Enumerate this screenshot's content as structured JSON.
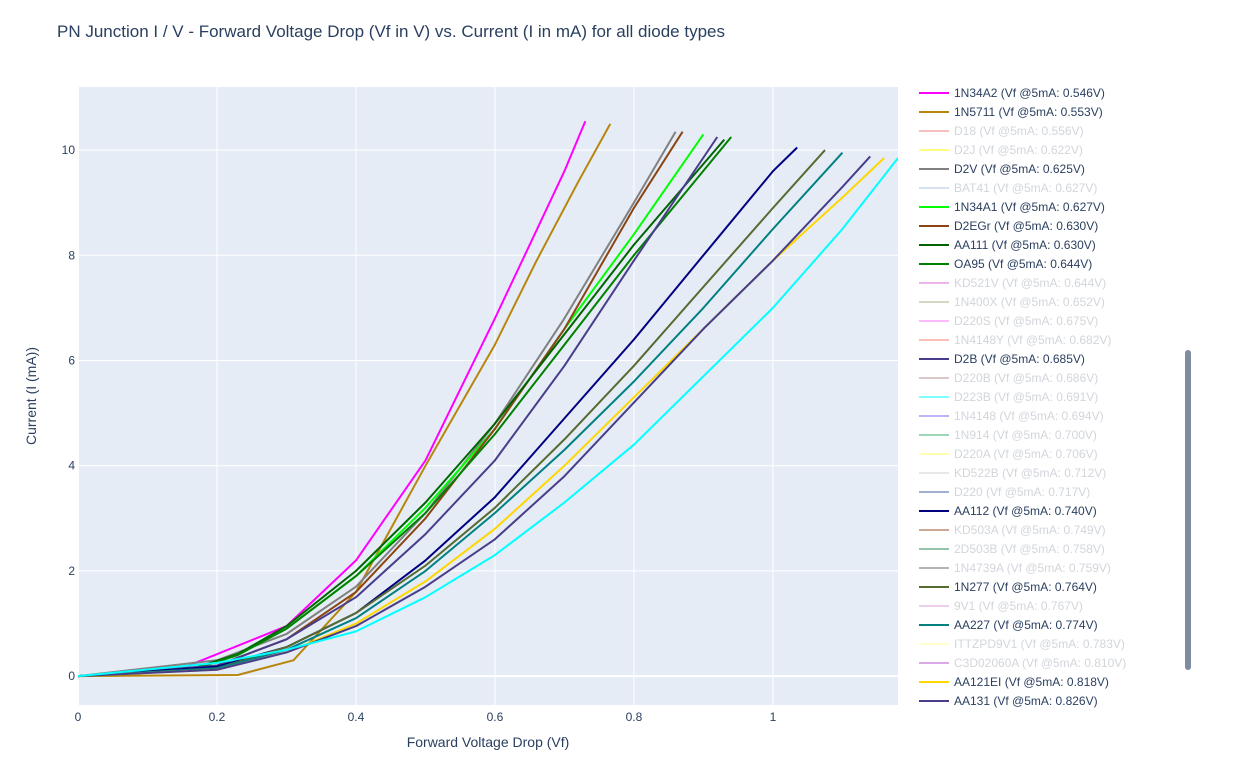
{
  "chart_data": {
    "type": "line",
    "title": "PN Junction I / V - Forward Voltage Drop (Vf in V) vs. Current (I in mA) for all diode types",
    "xlabel": "Forward Voltage Drop (Vf)",
    "ylabel": "Current (I (mA))",
    "xlim": [
      0,
      1.18
    ],
    "ylim": [
      -0.55,
      11.2
    ],
    "x_ticks": [
      0,
      0.2,
      0.4,
      0.6,
      0.8,
      1
    ],
    "x_tick_labels": [
      "0",
      "0.2",
      "0.4",
      "0.6",
      "0.8",
      "1"
    ],
    "y_ticks": [
      0,
      2,
      4,
      6,
      8,
      10
    ],
    "y_tick_labels": [
      "0",
      "2",
      "4",
      "6",
      "8",
      "10"
    ],
    "grid": true,
    "legend_position": "right",
    "plot_background": "#e5ecf6",
    "series": [
      {
        "name": "1N34A2 (Vf @5mA: 0.546V)",
        "color": "#ff00ff",
        "visible": true,
        "x": [
          0,
          0.15,
          0.3,
          0.4,
          0.5,
          0.6,
          0.65,
          0.7,
          0.73
        ],
        "y": [
          0,
          0.15,
          0.95,
          2.2,
          4.1,
          6.8,
          8.2,
          9.6,
          10.55
        ]
      },
      {
        "name": "1N5711 (Vf @5mA: 0.553V)",
        "color": "#b8860b",
        "visible": true,
        "x": [
          0,
          0.23,
          0.31,
          0.4,
          0.5,
          0.6,
          0.66,
          0.72,
          0.766
        ],
        "y": [
          0,
          0.02,
          0.3,
          1.6,
          4.0,
          6.3,
          7.9,
          9.4,
          10.5
        ]
      },
      {
        "name": "D18 (Vf @5mA: 0.556V)",
        "color": "#f08080",
        "visible": false,
        "x": [],
        "y": []
      },
      {
        "name": "D2J (Vf @5mA: 0.622V)",
        "color": "#ffff00",
        "visible": false,
        "x": [],
        "y": []
      },
      {
        "name": "D2V (Vf @5mA: 0.625V)",
        "color": "#808080",
        "visible": true,
        "x": [
          0,
          0.2,
          0.3,
          0.4,
          0.5,
          0.6,
          0.7,
          0.8,
          0.86
        ],
        "y": [
          0,
          0.3,
          0.8,
          1.7,
          3.1,
          4.8,
          6.8,
          9.0,
          10.35
        ]
      },
      {
        "name": "BAT41 (Vf @5mA: 0.627V)",
        "color": "#b0c4de",
        "visible": false,
        "x": [],
        "y": []
      },
      {
        "name": "1N34A1 (Vf @5mA: 0.627V)",
        "color": "#00ff00",
        "visible": true,
        "x": [
          0,
          0.16,
          0.23,
          0.3,
          0.4,
          0.5,
          0.6,
          0.7,
          0.8,
          0.9
        ],
        "y": [
          0,
          0.1,
          0.4,
          0.9,
          1.9,
          3.2,
          4.7,
          6.6,
          8.4,
          10.3
        ]
      },
      {
        "name": "D2EGr (Vf @5mA: 0.630V)",
        "color": "#8b4513",
        "visible": true,
        "x": [
          0,
          0.2,
          0.3,
          0.4,
          0.5,
          0.6,
          0.7,
          0.8,
          0.87
        ],
        "y": [
          0,
          0.2,
          0.7,
          1.6,
          3.0,
          4.7,
          6.6,
          8.9,
          10.35
        ]
      },
      {
        "name": "AA111 (Vf @5mA: 0.630V)",
        "color": "#006400",
        "visible": true,
        "x": [
          0,
          0.16,
          0.23,
          0.3,
          0.4,
          0.5,
          0.6,
          0.7,
          0.8,
          0.93
        ],
        "y": [
          0,
          0.12,
          0.42,
          0.95,
          2.0,
          3.3,
          4.8,
          6.5,
          8.2,
          10.2
        ]
      },
      {
        "name": "OA95 (Vf @5mA: 0.644V)",
        "color": "#008000",
        "visible": true,
        "x": [
          0,
          0.16,
          0.23,
          0.3,
          0.4,
          0.5,
          0.6,
          0.7,
          0.8,
          0.94
        ],
        "y": [
          0,
          0.1,
          0.4,
          0.9,
          1.9,
          3.1,
          4.6,
          6.3,
          8.0,
          10.25
        ]
      },
      {
        "name": "KD521V (Vf @5mA: 0.644V)",
        "color": "#da70d6",
        "visible": false,
        "x": [],
        "y": []
      },
      {
        "name": "1N400X (Vf @5mA: 0.652V)",
        "color": "#a8b08a",
        "visible": false,
        "x": [],
        "y": []
      },
      {
        "name": "D220S (Vf @5mA: 0.675V)",
        "color": "#ff77ff",
        "visible": false,
        "x": [],
        "y": []
      },
      {
        "name": "1N4148Y (Vf @5mA: 0.682V)",
        "color": "#fa8072",
        "visible": false,
        "x": [],
        "y": []
      },
      {
        "name": "D2B (Vf @5mA: 0.685V)",
        "color": "#483d8b",
        "visible": true,
        "x": [
          0,
          0.2,
          0.3,
          0.4,
          0.5,
          0.6,
          0.7,
          0.8,
          0.92
        ],
        "y": [
          0,
          0.2,
          0.7,
          1.5,
          2.7,
          4.1,
          5.9,
          7.9,
          10.25
        ]
      },
      {
        "name": "D220B (Vf @5mA: 0.686V)",
        "color": "#bc8f8f",
        "visible": false,
        "x": [],
        "y": []
      },
      {
        "name": "D223B (Vf @5mA: 0.691V)",
        "color": "#00ffff",
        "visible": false,
        "x": [],
        "y": []
      },
      {
        "name": "1N4148 (Vf @5mA: 0.694V)",
        "color": "#7b68ee",
        "visible": false,
        "x": [],
        "y": []
      },
      {
        "name": "1N914 (Vf @5mA: 0.700V)",
        "color": "#3cb371",
        "visible": false,
        "x": [],
        "y": []
      },
      {
        "name": "D220A (Vf @5mA: 0.706V)",
        "color": "#ffff66",
        "visible": false,
        "x": [],
        "y": []
      },
      {
        "name": "KD522B (Vf @5mA: 0.712V)",
        "color": "#d3d3d3",
        "visible": false,
        "x": [],
        "y": []
      },
      {
        "name": "D220 (Vf @5mA: 0.717V)",
        "color": "#4b5fa8",
        "visible": false,
        "x": [],
        "y": []
      },
      {
        "name": "AA112 (Vf @5mA: 0.740V)",
        "color": "#000080",
        "visible": true,
        "x": [
          0,
          0.2,
          0.3,
          0.4,
          0.5,
          0.6,
          0.7,
          0.8,
          0.9,
          1.0,
          1.035
        ],
        "y": [
          0,
          0.18,
          0.55,
          1.2,
          2.2,
          3.4,
          4.9,
          6.4,
          8.0,
          9.6,
          10.05
        ]
      },
      {
        "name": "KD503A (Vf @5mA: 0.749V)",
        "color": "#a0522d",
        "visible": false,
        "x": [],
        "y": []
      },
      {
        "name": "2D503B (Vf @5mA: 0.758V)",
        "color": "#2e8b57",
        "visible": false,
        "x": [],
        "y": []
      },
      {
        "name": "1N4739A (Vf @5mA: 0.759V)",
        "color": "#696969",
        "visible": false,
        "x": [],
        "y": []
      },
      {
        "name": "1N277 (Vf @5mA: 0.764V)",
        "color": "#556b2f",
        "visible": true,
        "x": [
          0,
          0.2,
          0.3,
          0.4,
          0.5,
          0.6,
          0.7,
          0.8,
          0.9,
          1.0,
          1.075
        ],
        "y": [
          0,
          0.15,
          0.55,
          1.2,
          2.1,
          3.2,
          4.5,
          5.9,
          7.4,
          8.9,
          10.0
        ]
      },
      {
        "name": "9V1 (Vf @5mA: 0.767V)",
        "color": "#dda0dd",
        "visible": false,
        "x": [],
        "y": []
      },
      {
        "name": "AA227 (Vf @5mA: 0.774V)",
        "color": "#008080",
        "visible": true,
        "x": [
          0,
          0.2,
          0.3,
          0.4,
          0.5,
          0.6,
          0.7,
          0.8,
          0.9,
          1.0,
          1.1
        ],
        "y": [
          0,
          0.15,
          0.5,
          1.1,
          2.0,
          3.1,
          4.3,
          5.6,
          7.0,
          8.5,
          9.95
        ]
      },
      {
        "name": "ITTZPD9V1 (Vf @5mA: 0.783V)",
        "color": "#ffff99",
        "visible": false,
        "x": [],
        "y": []
      },
      {
        "name": "C3D02060A (Vf @5mA: 0.810V)",
        "color": "#ba55d3",
        "visible": false,
        "x": [],
        "y": []
      },
      {
        "name": "AA121EI (Vf @5mA: 0.818V)",
        "color": "#ffd700",
        "visible": true,
        "x": [
          0,
          0.2,
          0.3,
          0.4,
          0.5,
          0.6,
          0.7,
          0.8,
          0.9,
          1.0,
          1.1,
          1.16
        ],
        "y": [
          0,
          0.12,
          0.45,
          1.0,
          1.8,
          2.8,
          4.0,
          5.3,
          6.6,
          7.9,
          9.1,
          9.85
        ]
      },
      {
        "name": "AA131 (Vf @5mA: 0.826V)",
        "color": "#483d8b",
        "visible": true,
        "x": [
          0,
          0.2,
          0.3,
          0.4,
          0.5,
          0.6,
          0.7,
          0.8,
          0.9,
          1.0,
          1.1,
          1.14
        ],
        "y": [
          0,
          0.12,
          0.45,
          0.95,
          1.7,
          2.6,
          3.8,
          5.2,
          6.6,
          7.9,
          9.3,
          9.88
        ]
      },
      {
        "name": "",
        "color": "#00ffff",
        "visible": true,
        "x": [
          0,
          0.2,
          0.3,
          0.4,
          0.5,
          0.6,
          0.7,
          0.8,
          0.9,
          1.0,
          1.1,
          1.18
        ],
        "y": [
          0,
          0.25,
          0.5,
          0.85,
          1.5,
          2.3,
          3.3,
          4.4,
          5.7,
          7.0,
          8.5,
          9.85
        ]
      }
    ]
  }
}
